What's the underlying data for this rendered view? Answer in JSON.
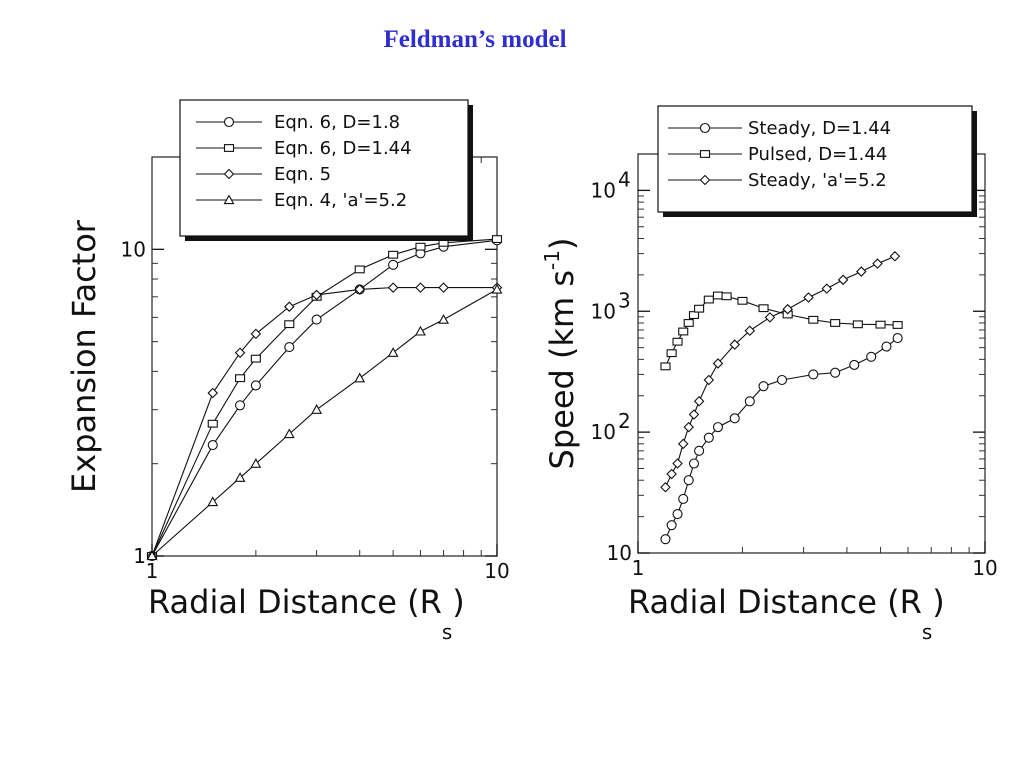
{
  "slide": {
    "title": "Feldman’s model"
  },
  "chart_data": [
    {
      "type": "line",
      "xlabel": "Radial Distance (R",
      "xlabel_sub": "s",
      "xlabel_close": ")",
      "ylabel": "Expansion Factor",
      "x_scale": "log",
      "y_scale": "log",
      "xlim": [
        1,
        10
      ],
      "ylim": [
        1,
        20
      ],
      "x_ticks": [
        {
          "v": 1,
          "label": "1"
        },
        {
          "v": 10,
          "label": "10"
        }
      ],
      "y_ticks": [
        {
          "v": 1,
          "label": "1"
        },
        {
          "v": 10,
          "label": "10"
        }
      ],
      "grid": false,
      "legend_position": "top",
      "series": [
        {
          "name": "Eqn. 6, D=1.8",
          "marker": "circle",
          "x": [
            1.0,
            1.5,
            1.8,
            2.0,
            2.5,
            3.0,
            4.0,
            5.0,
            6.0,
            7.0,
            10.0
          ],
          "y": [
            1.0,
            2.3,
            3.1,
            3.6,
            4.8,
            5.9,
            7.4,
            8.9,
            9.7,
            10.2,
            10.7
          ]
        },
        {
          "name": "Eqn. 6, D=1.44",
          "marker": "square",
          "x": [
            1.0,
            1.5,
            1.8,
            2.0,
            2.5,
            3.0,
            4.0,
            5.0,
            6.0,
            7.0,
            10.0
          ],
          "y": [
            1.0,
            2.7,
            3.8,
            4.4,
            5.7,
            7.0,
            8.6,
            9.6,
            10.2,
            10.5,
            10.8
          ]
        },
        {
          "name": "Eqn. 5",
          "marker": "diamond",
          "x": [
            1.0,
            1.5,
            1.8,
            2.0,
            2.5,
            3.0,
            4.0,
            5.0,
            6.0,
            7.0,
            10.0
          ],
          "y": [
            1.0,
            3.4,
            4.6,
            5.3,
            6.5,
            7.1,
            7.4,
            7.5,
            7.5,
            7.5,
            7.5
          ]
        },
        {
          "name": "Eqn. 4, 'a'=5.2",
          "marker": "triangle",
          "x": [
            1.0,
            1.5,
            1.8,
            2.0,
            2.5,
            3.0,
            4.0,
            5.0,
            6.0,
            7.0,
            10.0
          ],
          "y": [
            1.0,
            1.5,
            1.8,
            2.0,
            2.5,
            3.0,
            3.8,
            4.6,
            5.4,
            5.9,
            7.4
          ]
        }
      ]
    },
    {
      "type": "line",
      "xlabel": "Radial Distance (R",
      "xlabel_sub": "s",
      "xlabel_close": ")",
      "ylabel": "Speed (km s",
      "ylabel_sup": "-1",
      "ylabel_close": ")",
      "x_scale": "log",
      "y_scale": "log",
      "xlim": [
        1,
        10
      ],
      "ylim": [
        10,
        20000
      ],
      "x_ticks": [
        {
          "v": 1,
          "label": "1"
        },
        {
          "v": 10,
          "label": "10"
        }
      ],
      "y_ticks": [
        {
          "v": 10,
          "label": "10"
        },
        {
          "v": 100,
          "label": "10",
          "exp": "2"
        },
        {
          "v": 1000,
          "label": "10",
          "exp": "3"
        },
        {
          "v": 10000,
          "label": "10",
          "exp": "4"
        }
      ],
      "grid": false,
      "legend_position": "top",
      "series": [
        {
          "name": "Steady, D=1.44",
          "marker": "circle",
          "x": [
            1.2,
            1.25,
            1.3,
            1.35,
            1.4,
            1.45,
            1.5,
            1.6,
            1.7,
            1.9,
            2.1,
            2.3,
            2.6,
            3.2,
            3.7,
            4.2,
            4.7,
            5.2,
            5.6
          ],
          "y": [
            13,
            17,
            21,
            28,
            40,
            55,
            70,
            90,
            110,
            130,
            180,
            240,
            270,
            300,
            310,
            360,
            420,
            510,
            600
          ]
        },
        {
          "name": "Pulsed, D=1.44",
          "marker": "square",
          "x": [
            1.2,
            1.25,
            1.3,
            1.35,
            1.4,
            1.45,
            1.5,
            1.6,
            1.7,
            1.8,
            2.0,
            2.3,
            2.7,
            3.2,
            3.7,
            4.3,
            5.0,
            5.6
          ],
          "y": [
            350,
            450,
            560,
            680,
            800,
            930,
            1050,
            1250,
            1350,
            1330,
            1220,
            1060,
            940,
            850,
            800,
            780,
            775,
            770
          ]
        },
        {
          "name": "Steady, 'a'=5.2",
          "marker": "diamond",
          "x": [
            1.2,
            1.25,
            1.3,
            1.35,
            1.4,
            1.45,
            1.5,
            1.6,
            1.7,
            1.9,
            2.1,
            2.4,
            2.7,
            3.1,
            3.5,
            3.9,
            4.4,
            4.9,
            5.5
          ],
          "y": [
            35,
            45,
            55,
            80,
            110,
            140,
            180,
            270,
            370,
            530,
            690,
            890,
            1040,
            1300,
            1540,
            1820,
            2130,
            2480,
            2850
          ]
        }
      ]
    }
  ]
}
